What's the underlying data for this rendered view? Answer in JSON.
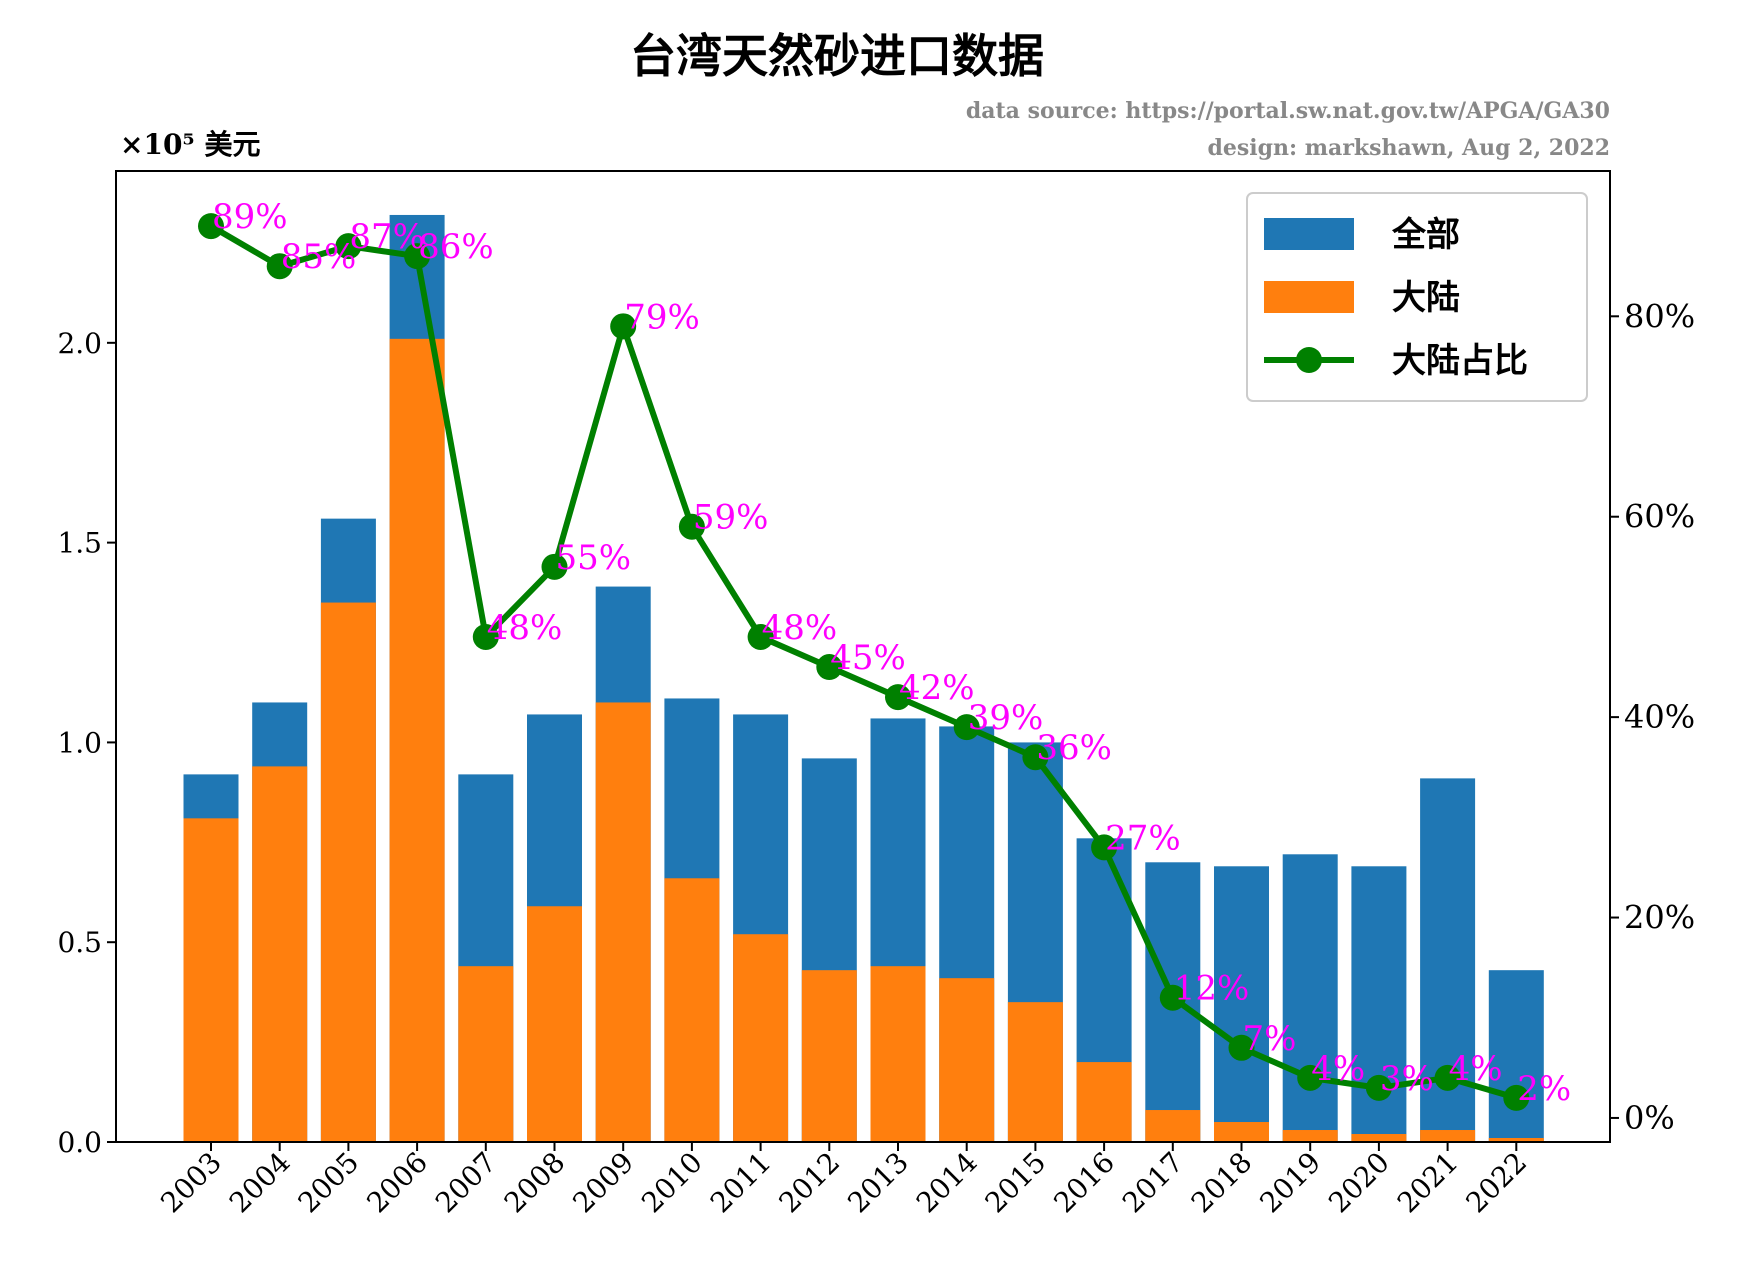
{
  "chart_data": {
    "type": "bar",
    "title": "台湾天然砂进口数据",
    "source_line": "data source:  https://portal.sw.nat.gov.tw/APGA/GA30",
    "design_line": "design: markshawn, Aug 2, 2022",
    "y_unit_label": "×10⁵ 美元",
    "categories": [
      "2003",
      "2004",
      "2005",
      "2006",
      "2007",
      "2008",
      "2009",
      "2010",
      "2011",
      "2012",
      "2013",
      "2014",
      "2015",
      "2016",
      "2017",
      "2018",
      "2019",
      "2020",
      "2021",
      "2022"
    ],
    "series": [
      {
        "name": "全部",
        "type": "bar",
        "color": "#1f77b4",
        "values": [
          0.92,
          1.1,
          1.56,
          2.32,
          0.92,
          1.07,
          1.39,
          1.11,
          1.07,
          0.96,
          1.06,
          1.04,
          1.0,
          0.76,
          0.7,
          0.69,
          0.72,
          0.69,
          0.91,
          0.43
        ]
      },
      {
        "name": "大陆",
        "type": "bar",
        "color": "#ff7f0e",
        "values": [
          0.81,
          0.94,
          1.35,
          2.01,
          0.44,
          0.59,
          1.1,
          0.66,
          0.52,
          0.43,
          0.44,
          0.41,
          0.35,
          0.2,
          0.08,
          0.05,
          0.03,
          0.02,
          0.03,
          0.01
        ]
      },
      {
        "name": "大陆占比",
        "type": "line",
        "axis": "right",
        "color": "#008000",
        "values": [
          89,
          85,
          87,
          86,
          48,
          55,
          79,
          59,
          48,
          45,
          42,
          39,
          36,
          27,
          12,
          7,
          4,
          3,
          4,
          2
        ]
      }
    ],
    "point_labels": [
      "89%",
      "85%",
      "87%",
      "86%",
      "48%",
      "55%",
      "79%",
      "59%",
      "48%",
      "45%",
      "42%",
      "39%",
      "36%",
      "27%",
      "12%",
      "7%",
      "4%",
      "3%",
      "4%",
      "2%"
    ],
    "y_left": {
      "ylim": [
        0,
        2.43
      ],
      "ticks": [
        0.0,
        0.5,
        1.0,
        1.5,
        2.0
      ],
      "tick_labels": [
        "0.0",
        "0.5",
        "1.0",
        "1.5",
        "2.0"
      ]
    },
    "y_right": {
      "ylim": [
        -2.4,
        94.5
      ],
      "ticks": [
        0,
        20,
        40,
        60,
        80
      ],
      "tick_labels": [
        "0%",
        "20%",
        "40%",
        "60%",
        "80%"
      ]
    },
    "label_color": "#ff00ff",
    "legend": {
      "position": "top-right",
      "entries": [
        "全部",
        "大陆",
        "大陆占比"
      ]
    },
    "grid": false
  }
}
